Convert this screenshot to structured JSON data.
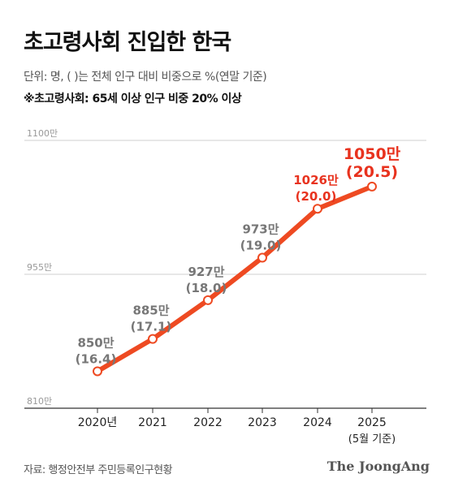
{
  "header": {
    "title": "초고령사회 진입한 한국",
    "unit_note": "단위: 명, ( )는 전체 인구 대비 비중으로 %(연말 기준)",
    "definition_note": "※초고령사회: 65세 이상 인구 비중 20% 이상"
  },
  "footer": {
    "source": "자료: 행정안전부 주민등록인구현황",
    "brand": "The JoongAng"
  },
  "colors": {
    "line": "#ee4a22",
    "highlight_text": "#e8321e",
    "normal_text": "#777777",
    "grid": "#cfcfcf",
    "axis": "#333333"
  },
  "chart_data": {
    "type": "line",
    "categories": [
      "2020년",
      "2021",
      "2022",
      "2023",
      "2024",
      "2025"
    ],
    "category_sublabels": [
      "",
      "",
      "",
      "",
      "",
      "(5월 기준)"
    ],
    "ylim": [
      810,
      1100
    ],
    "yticks": [
      810,
      955,
      1100
    ],
    "ytick_labels": [
      "810만",
      "955만",
      "1100만"
    ],
    "grid": true,
    "series": [
      {
        "values": [
          850,
          885,
          927,
          973,
          1026,
          1050
        ],
        "value_labels": [
          "850만",
          "885만",
          "927만",
          "973만",
          "1026만",
          "1050만"
        ],
        "share_labels": [
          "(16.4)",
          "(17.1)",
          "(18.0)",
          "(19.0)",
          "(20.0)",
          "(20.5)"
        ],
        "highlight": [
          false,
          false,
          false,
          false,
          true,
          true
        ]
      }
    ]
  }
}
